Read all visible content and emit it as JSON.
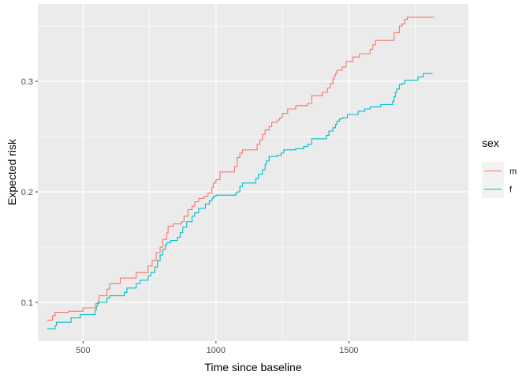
{
  "chart_data": {
    "type": "line",
    "step": true,
    "title": "",
    "xlabel": "Time since baseline",
    "ylabel": "Expected risk",
    "xlim": [
      330,
      1950
    ],
    "ylim": [
      0.065,
      0.37
    ],
    "x_ticks": [
      500,
      1000,
      1500
    ],
    "x_tick_labels": [
      "500",
      "1000",
      "1500"
    ],
    "y_ticks": [
      0.1,
      0.2,
      0.3
    ],
    "y_tick_labels": [
      "0.1",
      "0.2",
      "0.3"
    ],
    "grid": true,
    "legend": {
      "title": "sex",
      "position": "right"
    },
    "series": [
      {
        "name": "m",
        "color": "#F8766D",
        "x": [
          365,
          378,
          385,
          395,
          430,
          445,
          470,
          500,
          520,
          548,
          560,
          590,
          600,
          640,
          660,
          700,
          730,
          745,
          760,
          775,
          790,
          800,
          815,
          820,
          840,
          870,
          880,
          895,
          910,
          920,
          935,
          955,
          970,
          985,
          990,
          1000,
          1015,
          1070,
          1080,
          1090,
          1100,
          1155,
          1165,
          1175,
          1185,
          1200,
          1210,
          1230,
          1240,
          1250,
          1270,
          1300,
          1345,
          1360,
          1400,
          1420,
          1430,
          1440,
          1445,
          1450,
          1455,
          1475,
          1490,
          1515,
          1540,
          1580,
          1590,
          1600,
          1670,
          1690,
          1700,
          1710,
          1720,
          1745,
          1760,
          1785,
          1820
        ],
        "y": [
          0.084,
          0.084,
          0.088,
          0.091,
          0.091,
          0.092,
          0.092,
          0.095,
          0.095,
          0.099,
          0.106,
          0.112,
          0.117,
          0.122,
          0.122,
          0.127,
          0.127,
          0.133,
          0.138,
          0.145,
          0.15,
          0.157,
          0.163,
          0.169,
          0.171,
          0.173,
          0.178,
          0.184,
          0.187,
          0.191,
          0.194,
          0.196,
          0.199,
          0.204,
          0.208,
          0.211,
          0.218,
          0.223,
          0.231,
          0.235,
          0.238,
          0.243,
          0.247,
          0.252,
          0.256,
          0.259,
          0.263,
          0.265,
          0.267,
          0.271,
          0.275,
          0.278,
          0.28,
          0.287,
          0.29,
          0.294,
          0.298,
          0.302,
          0.305,
          0.307,
          0.31,
          0.313,
          0.318,
          0.322,
          0.325,
          0.329,
          0.333,
          0.337,
          0.344,
          0.35,
          0.352,
          0.356,
          0.358,
          0.358,
          0.358,
          0.358,
          0.358
        ]
      },
      {
        "name": "f",
        "color": "#00BFC4",
        "x": [
          365,
          385,
          395,
          400,
          455,
          490,
          545,
          550,
          555,
          590,
          600,
          655,
          665,
          700,
          715,
          745,
          755,
          770,
          780,
          790,
          800,
          810,
          815,
          830,
          855,
          865,
          875,
          890,
          910,
          920,
          935,
          960,
          975,
          985,
          990,
          1000,
          1075,
          1080,
          1090,
          1100,
          1150,
          1160,
          1175,
          1185,
          1190,
          1200,
          1230,
          1245,
          1255,
          1300,
          1330,
          1345,
          1360,
          1415,
          1425,
          1440,
          1450,
          1455,
          1465,
          1475,
          1495,
          1535,
          1560,
          1580,
          1620,
          1665,
          1670,
          1675,
          1680,
          1690,
          1700,
          1710,
          1760,
          1780,
          1815
        ],
        "y": [
          0.076,
          0.076,
          0.079,
          0.082,
          0.086,
          0.089,
          0.093,
          0.097,
          0.1,
          0.104,
          0.106,
          0.109,
          0.113,
          0.117,
          0.12,
          0.124,
          0.127,
          0.132,
          0.138,
          0.143,
          0.148,
          0.152,
          0.154,
          0.156,
          0.159,
          0.163,
          0.168,
          0.173,
          0.178,
          0.181,
          0.185,
          0.189,
          0.192,
          0.194,
          0.196,
          0.197,
          0.199,
          0.2,
          0.205,
          0.208,
          0.212,
          0.216,
          0.22,
          0.225,
          0.228,
          0.232,
          0.233,
          0.235,
          0.238,
          0.239,
          0.241,
          0.243,
          0.248,
          0.251,
          0.255,
          0.258,
          0.261,
          0.264,
          0.266,
          0.267,
          0.27,
          0.273,
          0.275,
          0.277,
          0.279,
          0.282,
          0.286,
          0.29,
          0.293,
          0.297,
          0.298,
          0.301,
          0.304,
          0.307,
          0.307
        ]
      }
    ]
  }
}
